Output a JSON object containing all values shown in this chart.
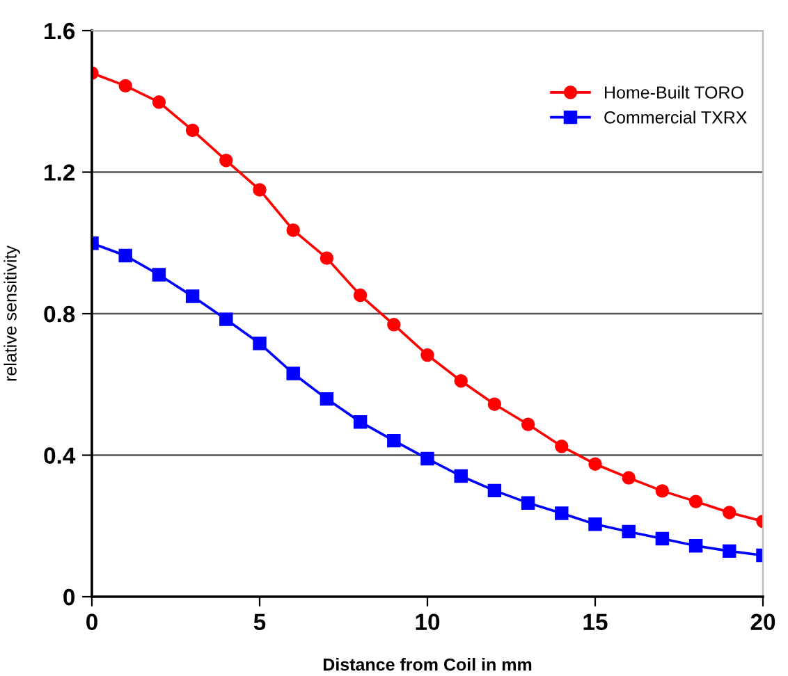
{
  "chart_data": {
    "type": "line",
    "xlabel": "Distance from Coil in mm",
    "ylabel": "relative sensitivity",
    "x": [
      0,
      1,
      2,
      3,
      4,
      5,
      6,
      7,
      8,
      9,
      10,
      11,
      12,
      13,
      14,
      15,
      16,
      17,
      18,
      19,
      20
    ],
    "series": [
      {
        "name": "Home-Built TORO",
        "color": "#ff0000",
        "marker": "circle",
        "values": [
          1.48,
          1.444,
          1.398,
          1.318,
          1.233,
          1.15,
          1.036,
          0.957,
          0.852,
          0.769,
          0.683,
          0.61,
          0.544,
          0.487,
          0.425,
          0.375,
          0.336,
          0.299,
          0.269,
          0.238,
          0.213
        ]
      },
      {
        "name": "Commercial TXRX",
        "color": "#0000ff",
        "marker": "square",
        "values": [
          0.999,
          0.964,
          0.91,
          0.849,
          0.784,
          0.716,
          0.631,
          0.559,
          0.494,
          0.441,
          0.39,
          0.341,
          0.3,
          0.265,
          0.236,
          0.205,
          0.184,
          0.164,
          0.144,
          0.129,
          0.117
        ]
      }
    ],
    "xlim": [
      0,
      20
    ],
    "xticks": [
      0,
      5,
      10,
      15,
      20
    ],
    "ylim": [
      0,
      1.6
    ],
    "yticks": [
      0,
      0.4,
      0.8,
      1.2,
      1.6
    ],
    "grid": "y",
    "legend": "top right",
    "line_style": "solid"
  }
}
